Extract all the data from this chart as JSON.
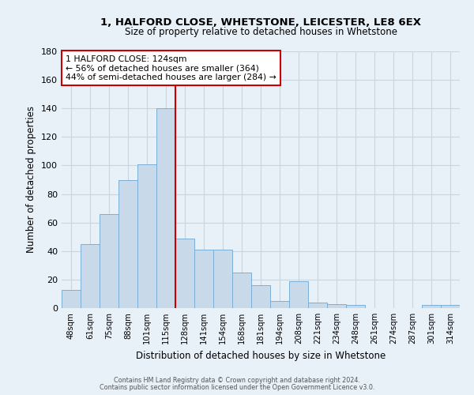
{
  "title_line1": "1, HALFORD CLOSE, WHETSTONE, LEICESTER, LE8 6EX",
  "title_line2": "Size of property relative to detached houses in Whetstone",
  "xlabel": "Distribution of detached houses by size in Whetstone",
  "ylabel": "Number of detached properties",
  "footer_line1": "Contains HM Land Registry data © Crown copyright and database right 2024.",
  "footer_line2": "Contains public sector information licensed under the Open Government Licence v3.0.",
  "bar_labels": [
    "48sqm",
    "61sqm",
    "75sqm",
    "88sqm",
    "101sqm",
    "115sqm",
    "128sqm",
    "141sqm",
    "154sqm",
    "168sqm",
    "181sqm",
    "194sqm",
    "208sqm",
    "221sqm",
    "234sqm",
    "248sqm",
    "261sqm",
    "274sqm",
    "287sqm",
    "301sqm",
    "314sqm"
  ],
  "bar_values": [
    13,
    45,
    66,
    90,
    101,
    140,
    49,
    41,
    41,
    25,
    16,
    5,
    19,
    4,
    3,
    2,
    0,
    0,
    0,
    2,
    2
  ],
  "bar_color": "#c8d9ea",
  "bar_edge_color": "#7bafd4",
  "grid_color": "#c8d4de",
  "background_color": "#e8f0f8",
  "property_line_x": 5.5,
  "property_line_color": "#cc0000",
  "annotation_text_line1": "1 HALFORD CLOSE: 124sqm",
  "annotation_text_line2": "← 56% of detached houses are smaller (364)",
  "annotation_text_line3": "44% of semi-detached houses are larger (284) →",
  "annotation_box_color": "#cc0000",
  "ylim": [
    0,
    180
  ],
  "yticks": [
    0,
    20,
    40,
    60,
    80,
    100,
    120,
    140,
    160,
    180
  ]
}
